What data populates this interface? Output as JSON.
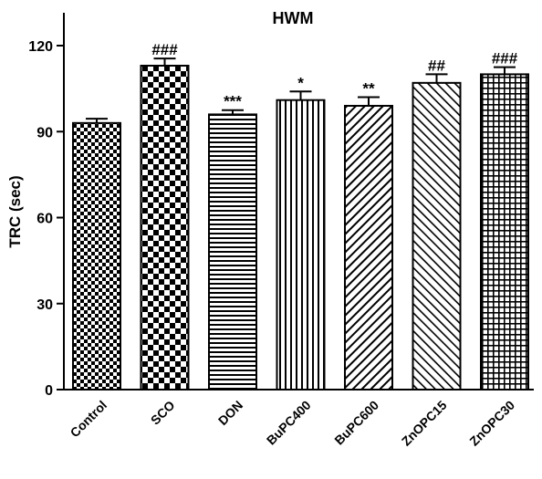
{
  "chart_data": {
    "type": "bar",
    "title": "HWM",
    "ylabel": "TRC (sec)",
    "xlabel": "",
    "ylim": [
      0,
      130
    ],
    "yticks": [
      0,
      30,
      60,
      90,
      120
    ],
    "categories": [
      "Control",
      "SCO",
      "DON",
      "BuPC400",
      "BuPC600",
      "ZnOPC15",
      "ZnOPC30"
    ],
    "values": [
      93,
      113,
      96,
      101,
      99,
      107,
      110
    ],
    "errors": [
      1.5,
      2.5,
      1.5,
      3.0,
      3.0,
      3.0,
      2.5
    ],
    "annotations": [
      "",
      "###",
      "***",
      "*",
      "**",
      "##",
      "###"
    ],
    "patterns": [
      "small-checker",
      "large-checker",
      "horizontal-lines",
      "vertical-lines",
      "diagonal-right",
      "diagonal-left",
      "grid"
    ],
    "bar_color": "#000000",
    "grid": false
  }
}
